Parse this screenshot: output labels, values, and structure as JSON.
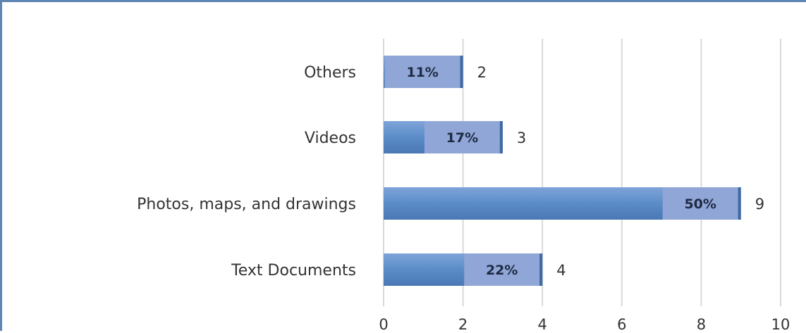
{
  "chart_data": {
    "type": "bar",
    "orientation": "horizontal",
    "categories": [
      "Others",
      "Videos",
      "Photos, maps, and drawings",
      "Text Documents"
    ],
    "values": [
      2,
      3,
      9,
      4
    ],
    "percent_labels": [
      "11%",
      "17%",
      "50%",
      "22%"
    ],
    "xlim": [
      0,
      10
    ],
    "x_ticks": [
      "0",
      "2",
      "4",
      "6",
      "8",
      "10"
    ],
    "grid": "vertical",
    "colors": {
      "bar_main": "#5b8cc8",
      "bar_highlight": "#8fa6d6",
      "grid": "#d9d9d9",
      "frame": "#5f85b3"
    }
  }
}
